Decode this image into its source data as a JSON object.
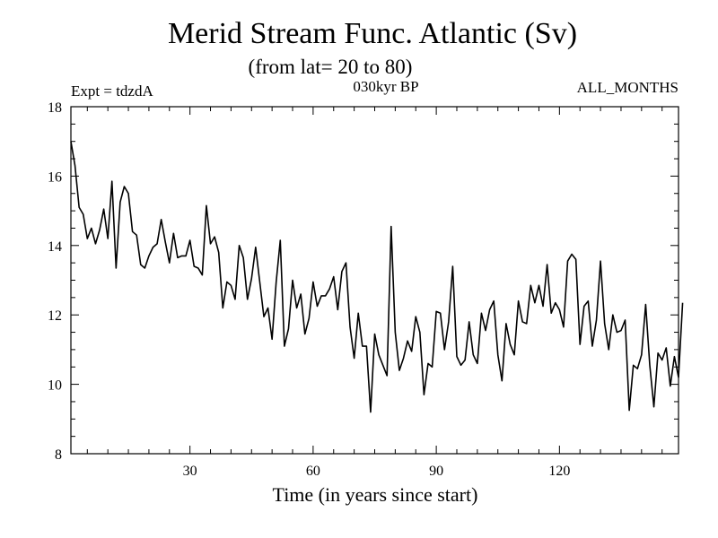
{
  "chart_data": {
    "type": "line",
    "title": "Merid Stream Func. Atlantic (Sv)",
    "subtitle": "(from lat= 20 to 80)",
    "experiment_label": "Expt = tdzdA",
    "period_label": "030kyr BP",
    "months_label": "ALL_MONTHS",
    "xlabel": "Time (in years since start)",
    "ylabel": "",
    "xlim": [
      1,
      149
    ],
    "ylim": [
      8,
      18
    ],
    "xticks": [
      30,
      60,
      90,
      120
    ],
    "yticks": [
      8,
      10,
      12,
      14,
      16,
      18
    ],
    "x_start": 1,
    "x_step": 1,
    "series": [
      {
        "name": "Merid Stream Func. Atlantic",
        "color": "#000000",
        "values": [
          17.0,
          16.3,
          15.1,
          14.9,
          14.2,
          14.5,
          14.05,
          14.45,
          15.05,
          14.2,
          15.85,
          13.35,
          15.25,
          15.7,
          15.5,
          14.4,
          14.3,
          13.45,
          13.35,
          13.7,
          13.95,
          14.05,
          14.75,
          14.1,
          13.5,
          14.35,
          13.65,
          13.7,
          13.7,
          14.15,
          13.4,
          13.35,
          13.15,
          15.15,
          14.05,
          14.25,
          13.8,
          12.2,
          12.95,
          12.85,
          12.45,
          14.0,
          13.65,
          12.45,
          13.05,
          13.95,
          12.95,
          11.95,
          12.2,
          11.3,
          12.95,
          14.15,
          11.1,
          11.6,
          13.0,
          12.2,
          12.6,
          11.45,
          11.9,
          12.95,
          12.25,
          12.55,
          12.55,
          12.75,
          13.1,
          12.15,
          13.25,
          13.5,
          11.65,
          10.75,
          12.05,
          11.1,
          11.1,
          9.2,
          11.45,
          10.85,
          10.55,
          10.25,
          14.55,
          11.5,
          10.4,
          10.75,
          11.25,
          10.95,
          11.95,
          11.5,
          9.7,
          10.6,
          10.5,
          12.1,
          12.05,
          11.0,
          11.8,
          13.4,
          10.8,
          10.55,
          10.7,
          11.8,
          10.85,
          10.6,
          12.05,
          11.55,
          12.15,
          12.4,
          10.85,
          10.1,
          11.75,
          11.15,
          10.85,
          12.4,
          11.8,
          11.75,
          12.85,
          12.35,
          12.85,
          12.25,
          13.45,
          12.05,
          12.35,
          12.15,
          11.65,
          13.55,
          13.75,
          13.6,
          11.15,
          12.25,
          12.4,
          11.1,
          11.85,
          13.55,
          11.75,
          11.0,
          12.0,
          11.5,
          11.55,
          11.85,
          9.25,
          10.55,
          10.45,
          10.85,
          12.3,
          10.55,
          9.35,
          10.9,
          10.7,
          11.05,
          9.95,
          10.8,
          10.2,
          12.35
        ]
      }
    ],
    "grid": false,
    "legend": "none"
  }
}
